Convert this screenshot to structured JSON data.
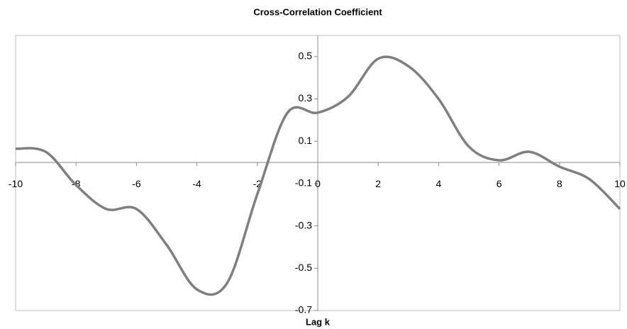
{
  "chart_data": {
    "type": "line",
    "title": "Cross-Correlation Coefficient",
    "x_label": "Lag k",
    "x": [
      -10,
      -9,
      -8,
      -7,
      -6,
      -5,
      -4,
      -3,
      -2,
      -1,
      0,
      1,
      2,
      3,
      4,
      5,
      6,
      7,
      8,
      9,
      10
    ],
    "series": [
      {
        "name": "Cross-Correlation Coefficient",
        "color": "#7f7f7f",
        "values": [
          0.065,
          0.05,
          -0.107,
          -0.22,
          -0.22,
          -0.39,
          -0.6,
          -0.57,
          -0.15,
          0.235,
          0.235,
          0.31,
          0.49,
          0.455,
          0.3,
          0.075,
          0.01,
          0.05,
          -0.02,
          -0.08,
          -0.22
        ]
      }
    ],
    "xlim": [
      -10,
      10
    ],
    "xticks": [
      -10,
      -8,
      -6,
      -4,
      -2,
      0,
      2,
      4,
      6,
      8,
      10
    ],
    "ylim": [
      -0.7,
      0.6
    ],
    "yticks": [
      -0.7,
      -0.5,
      -0.3,
      -0.1,
      0.1,
      0.3,
      0.5
    ],
    "smooth": true
  }
}
